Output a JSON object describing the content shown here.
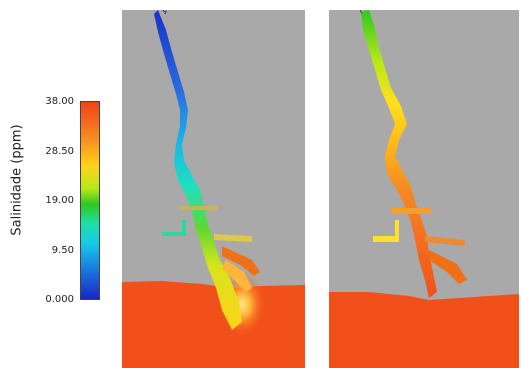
{
  "legend": {
    "title": "Salinidade  (ppm)",
    "ticks": [
      "38.00",
      "28.50",
      "19.00",
      "9.50",
      "0.000"
    ],
    "colors": {
      "top": "#f2401a",
      "upper_mid": "#ffb000",
      "mid": "#2ec81f",
      "lower_mid": "#17c8e8",
      "bottom": "#1826c7"
    }
  },
  "panels": [
    {
      "caption": "ç"
    },
    {
      "caption": "("
    }
  ],
  "palette": {
    "land": "#a9a9a9",
    "sea": "#f2501a"
  }
}
